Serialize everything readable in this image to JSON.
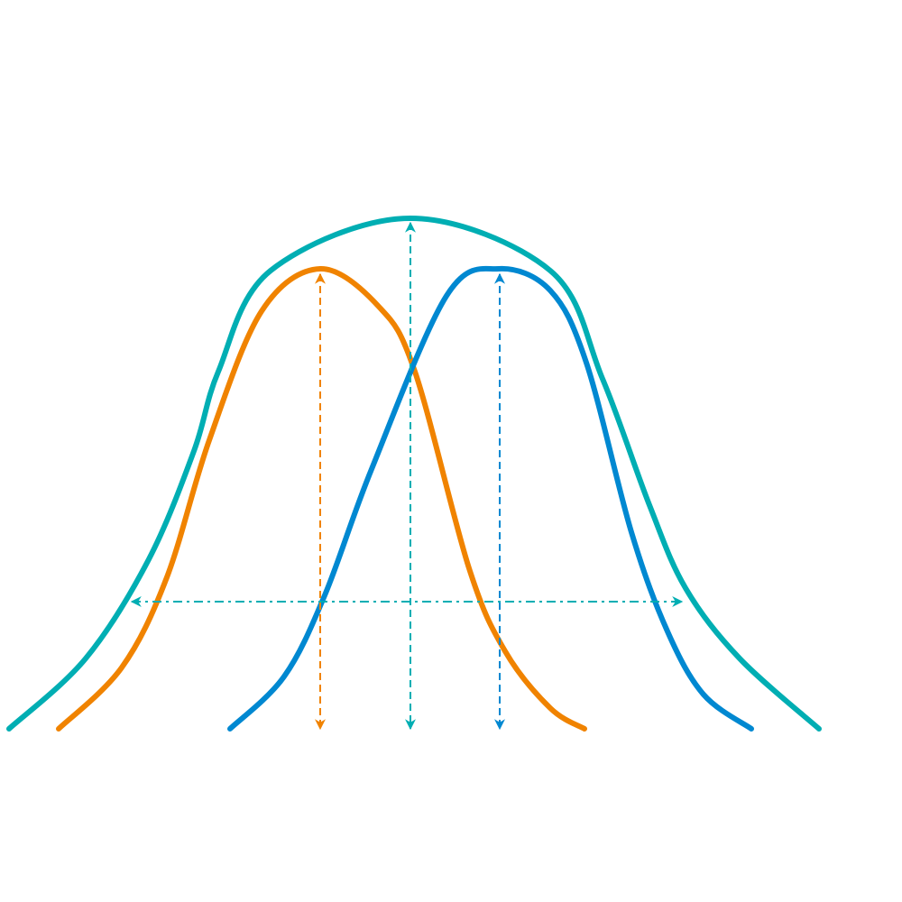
{
  "diagram": {
    "background": "#ffffff",
    "colors": {
      "wide_curve": "#00aeb3",
      "left_curve": "#f08300",
      "right_curve": "#0088d1",
      "width_arrow": "#00aeb3"
    }
  }
}
